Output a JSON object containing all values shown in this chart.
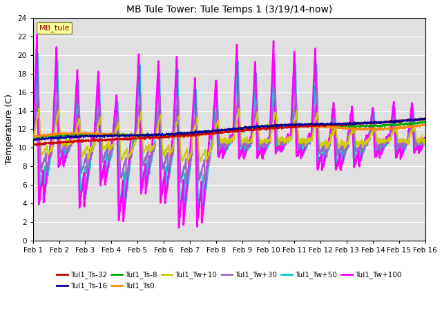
{
  "title": "MB Tule Tower: Tule Temps 1 (3/19/14-now)",
  "ylabel": "Temperature (C)",
  "xlim": [
    0,
    15
  ],
  "ylim": [
    0,
    24
  ],
  "yticks": [
    0,
    2,
    4,
    6,
    8,
    10,
    12,
    14,
    16,
    18,
    20,
    22,
    24
  ],
  "xtick_labels": [
    "Feb 1",
    "Feb 2",
    "Feb 3",
    "Feb 4",
    "Feb 5",
    "Feb 6",
    "Feb 7",
    "Feb 8",
    "Feb 9",
    "Feb 10",
    "Feb 11",
    "Feb 12",
    "Feb 13",
    "Feb 14",
    "Feb 15",
    "Feb 16"
  ],
  "bg_color": "#e0e0e0",
  "legend_label": "MB_tule",
  "series": {
    "Tul1_Ts-32": {
      "color": "#cc0000",
      "lw": 1.2
    },
    "Tul1_Ts-16": {
      "color": "#000099",
      "lw": 1.2
    },
    "Tul1_Ts-8": {
      "color": "#00aa00",
      "lw": 1.2
    },
    "Tul1_Ts0": {
      "color": "#ff8800",
      "lw": 1.2
    },
    "Tul1_Tw+10": {
      "color": "#cccc00",
      "lw": 1.2
    },
    "Tul1_Tw+30": {
      "color": "#9966cc",
      "lw": 1.5
    },
    "Tul1_Tw+50": {
      "color": "#00cccc",
      "lw": 1.5
    },
    "Tul1_Tw+100": {
      "color": "#ff00ff",
      "lw": 1.8
    }
  },
  "spike_times": [
    0.15,
    0.9,
    1.7,
    2.5,
    3.2,
    4.05,
    4.8,
    5.5,
    6.2,
    7.0,
    7.8,
    8.5,
    9.2,
    10.0,
    10.8,
    11.5,
    12.2,
    13.0,
    13.8,
    14.5
  ],
  "spike_heights_tw100": [
    22,
    21,
    18.5,
    18.5,
    16,
    20.5,
    19.5,
    20,
    17.5,
    17.5,
    21.5,
    19.5,
    21.5,
    20.5,
    21,
    15,
    14.5,
    14.5,
    15,
    15
  ],
  "spike_lows_tw100": [
    4,
    8,
    3.5,
    6,
    2,
    5,
    4,
    1.5,
    1.5,
    9,
    9,
    9,
    9.5,
    9,
    7.5,
    7.5,
    8,
    9,
    9,
    9.5
  ],
  "base_temp": 11.2
}
